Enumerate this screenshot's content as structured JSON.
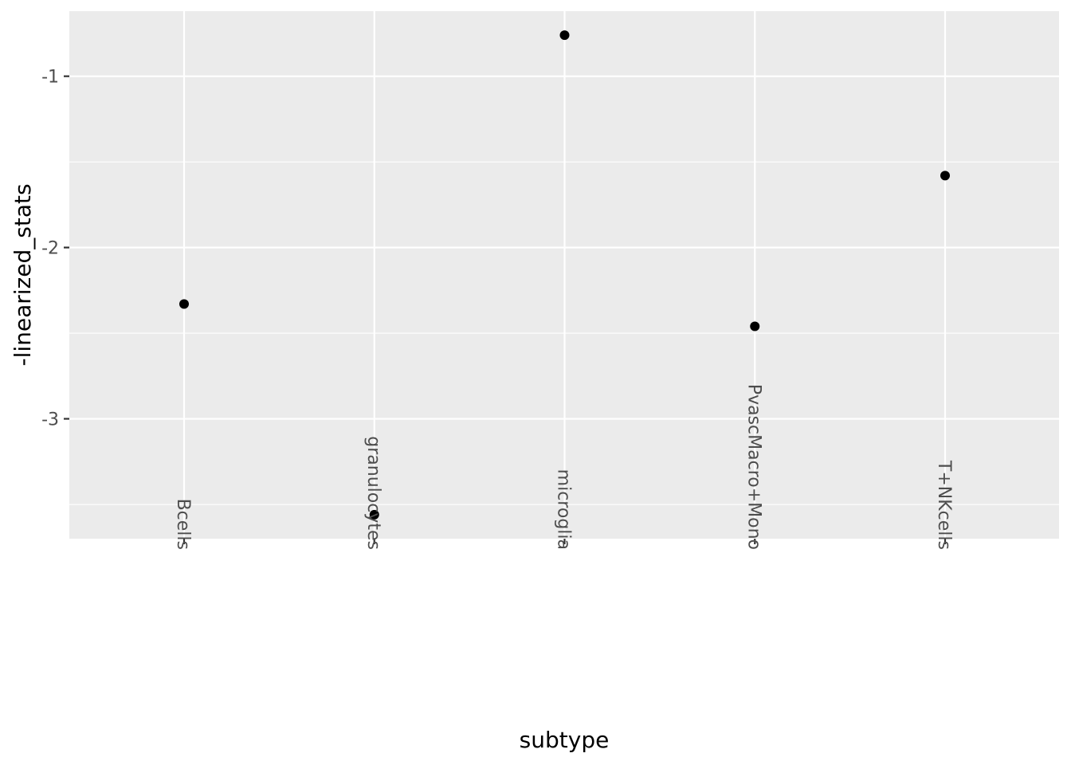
{
  "chart_data": {
    "type": "scatter",
    "title": "",
    "xlabel": "subtype",
    "ylabel": "-linearized_stats",
    "categories": [
      "Bcells",
      "granulocytes",
      "microglia",
      "PvascMacro+Mono",
      "T+NKcells"
    ],
    "values": [
      -2.33,
      -3.56,
      -0.76,
      -2.46,
      -1.58
    ],
    "ylim": [
      -3.7,
      -0.62
    ],
    "yticks": [
      -3,
      -2,
      -1
    ],
    "ytick_labels": [
      "-3",
      "-2",
      "-1"
    ],
    "y_minor_ticks": [
      -3.5,
      -2.5,
      -1.5
    ],
    "grid": true,
    "legend": "none",
    "colors": {
      "panel_background": "#ebebeb",
      "grid_line": "#ffffff",
      "point": "#000000",
      "tick_text": "#4d4d4d",
      "axis_title": "#000000"
    }
  }
}
